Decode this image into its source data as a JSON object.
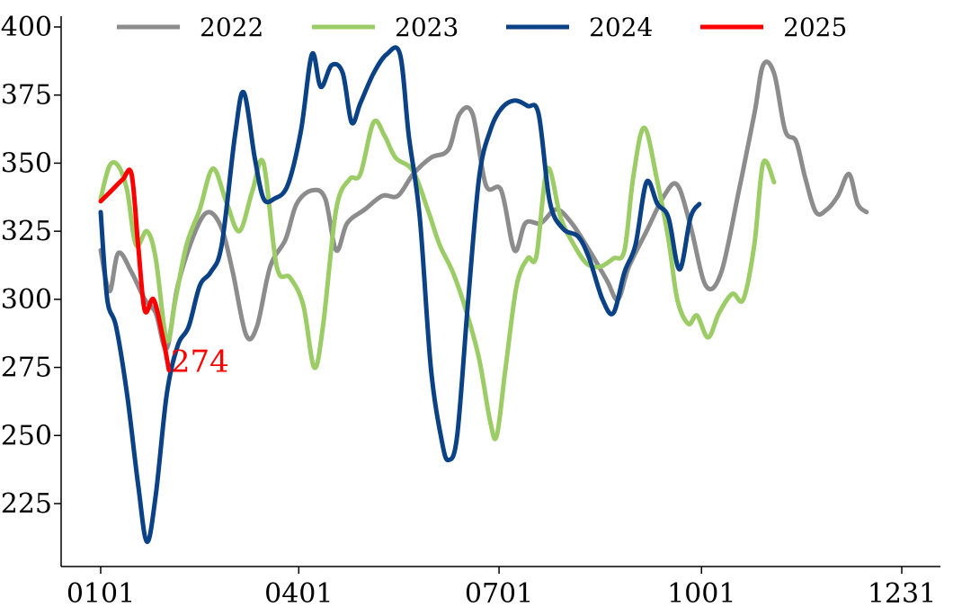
{
  "chart_data": {
    "type": "line",
    "ylim": [
      200,
      400
    ],
    "y_ticks": [
      225,
      250,
      275,
      300,
      325,
      350,
      375,
      400
    ],
    "x_ticks": [
      "0101",
      "0401",
      "0701",
      "1001",
      "1231"
    ],
    "x_tick_days": [
      0,
      90,
      181,
      273,
      364
    ],
    "legend_position": "top",
    "grid": false,
    "series": [
      {
        "name": "2022",
        "color": "#8c8c8c",
        "points": [
          [
            0,
            318
          ],
          [
            4,
            303
          ],
          [
            8,
            317
          ],
          [
            14,
            310
          ],
          [
            20,
            300
          ],
          [
            25,
            295
          ],
          [
            30,
            282
          ],
          [
            35,
            305
          ],
          [
            43,
            325
          ],
          [
            49,
            332
          ],
          [
            55,
            326
          ],
          [
            60,
            310
          ],
          [
            66,
            287
          ],
          [
            71,
            290
          ],
          [
            77,
            312
          ],
          [
            84,
            322
          ],
          [
            89,
            335
          ],
          [
            96,
            340
          ],
          [
            102,
            337
          ],
          [
            107,
            318
          ],
          [
            112,
            328
          ],
          [
            120,
            333
          ],
          [
            128,
            338
          ],
          [
            135,
            338
          ],
          [
            142,
            346
          ],
          [
            150,
            352
          ],
          [
            158,
            355
          ],
          [
            163,
            368
          ],
          [
            169,
            368
          ],
          [
            175,
            342
          ],
          [
            182,
            340
          ],
          [
            188,
            318
          ],
          [
            193,
            328
          ],
          [
            200,
            328
          ],
          [
            207,
            333
          ],
          [
            214,
            328
          ],
          [
            222,
            318
          ],
          [
            230,
            307
          ],
          [
            235,
            300
          ],
          [
            240,
            312
          ],
          [
            248,
            325
          ],
          [
            256,
            338
          ],
          [
            262,
            342
          ],
          [
            268,
            327
          ],
          [
            275,
            305
          ],
          [
            282,
            310
          ],
          [
            290,
            340
          ],
          [
            297,
            368
          ],
          [
            301,
            386
          ],
          [
            306,
            383
          ],
          [
            311,
            362
          ],
          [
            316,
            358
          ],
          [
            320,
            345
          ],
          [
            325,
            332
          ],
          [
            330,
            333
          ],
          [
            335,
            338
          ],
          [
            340,
            346
          ],
          [
            344,
            335
          ],
          [
            348,
            332
          ]
        ]
      },
      {
        "name": "2023",
        "color": "#9ccc65",
        "points": [
          [
            0,
            337
          ],
          [
            4,
            349
          ],
          [
            8,
            349
          ],
          [
            12,
            340
          ],
          [
            16,
            320
          ],
          [
            21,
            325
          ],
          [
            25,
            315
          ],
          [
            30,
            285
          ],
          [
            34,
            300
          ],
          [
            39,
            320
          ],
          [
            45,
            333
          ],
          [
            51,
            348
          ],
          [
            57,
            336
          ],
          [
            63,
            325
          ],
          [
            69,
            340
          ],
          [
            74,
            350
          ],
          [
            80,
            312
          ],
          [
            86,
            308
          ],
          [
            92,
            298
          ],
          [
            97,
            275
          ],
          [
            101,
            290
          ],
          [
            107,
            333
          ],
          [
            113,
            344
          ],
          [
            118,
            346
          ],
          [
            124,
            365
          ],
          [
            129,
            360
          ],
          [
            134,
            352
          ],
          [
            142,
            347
          ],
          [
            149,
            332
          ],
          [
            154,
            320
          ],
          [
            160,
            310
          ],
          [
            166,
            296
          ],
          [
            172,
            278
          ],
          [
            177,
            255
          ],
          [
            180,
            250
          ],
          [
            184,
            275
          ],
          [
            189,
            305
          ],
          [
            194,
            315
          ],
          [
            198,
            316
          ],
          [
            203,
            348
          ],
          [
            209,
            330
          ],
          [
            215,
            320
          ],
          [
            221,
            313
          ],
          [
            227,
            312
          ],
          [
            233,
            315
          ],
          [
            238,
            318
          ],
          [
            242,
            345
          ],
          [
            247,
            363
          ],
          [
            253,
            343
          ],
          [
            258,
            322
          ],
          [
            262,
            300
          ],
          [
            267,
            291
          ],
          [
            271,
            294
          ],
          [
            276,
            286
          ],
          [
            281,
            295
          ],
          [
            287,
            302
          ],
          [
            292,
            300
          ],
          [
            297,
            320
          ],
          [
            301,
            350
          ],
          [
            306,
            343
          ]
        ]
      },
      {
        "name": "2024",
        "color": "#0b4286",
        "points": [
          [
            0,
            332
          ],
          [
            3,
            300
          ],
          [
            7,
            290
          ],
          [
            12,
            265
          ],
          [
            17,
            232
          ],
          [
            21,
            211
          ],
          [
            25,
            228
          ],
          [
            30,
            265
          ],
          [
            35,
            283
          ],
          [
            40,
            290
          ],
          [
            45,
            305
          ],
          [
            50,
            310
          ],
          [
            55,
            320
          ],
          [
            61,
            360
          ],
          [
            65,
            376
          ],
          [
            70,
            352
          ],
          [
            74,
            337
          ],
          [
            79,
            337
          ],
          [
            85,
            342
          ],
          [
            91,
            362
          ],
          [
            96,
            390
          ],
          [
            100,
            378
          ],
          [
            105,
            386
          ],
          [
            110,
            383
          ],
          [
            114,
            365
          ],
          [
            118,
            372
          ],
          [
            124,
            383
          ],
          [
            130,
            390
          ],
          [
            136,
            390
          ],
          [
            140,
            360
          ],
          [
            145,
            330
          ],
          [
            150,
            275
          ],
          [
            155,
            248
          ],
          [
            158,
            241
          ],
          [
            162,
            250
          ],
          [
            167,
            300
          ],
          [
            172,
            345
          ],
          [
            177,
            362
          ],
          [
            182,
            370
          ],
          [
            188,
            373
          ],
          [
            194,
            371
          ],
          [
            199,
            368
          ],
          [
            204,
            336
          ],
          [
            210,
            326
          ],
          [
            217,
            323
          ],
          [
            222,
            315
          ],
          [
            228,
            300
          ],
          [
            233,
            295
          ],
          [
            238,
            310
          ],
          [
            243,
            320
          ],
          [
            248,
            343
          ],
          [
            253,
            335
          ],
          [
            258,
            330
          ],
          [
            263,
            311
          ],
          [
            268,
            330
          ],
          [
            272,
            335
          ]
        ]
      },
      {
        "name": "2025",
        "color": "#ff0000",
        "points": [
          [
            0,
            336
          ],
          [
            5,
            340
          ],
          [
            10,
            344
          ],
          [
            14,
            346
          ],
          [
            17,
            320
          ],
          [
            20,
            296
          ],
          [
            24,
            300
          ],
          [
            28,
            287
          ],
          [
            31,
            274
          ]
        ]
      }
    ],
    "annotations": [
      {
        "text": "274",
        "series": "2025",
        "x": 31,
        "y": 274,
        "color": "#ff0000"
      }
    ]
  }
}
